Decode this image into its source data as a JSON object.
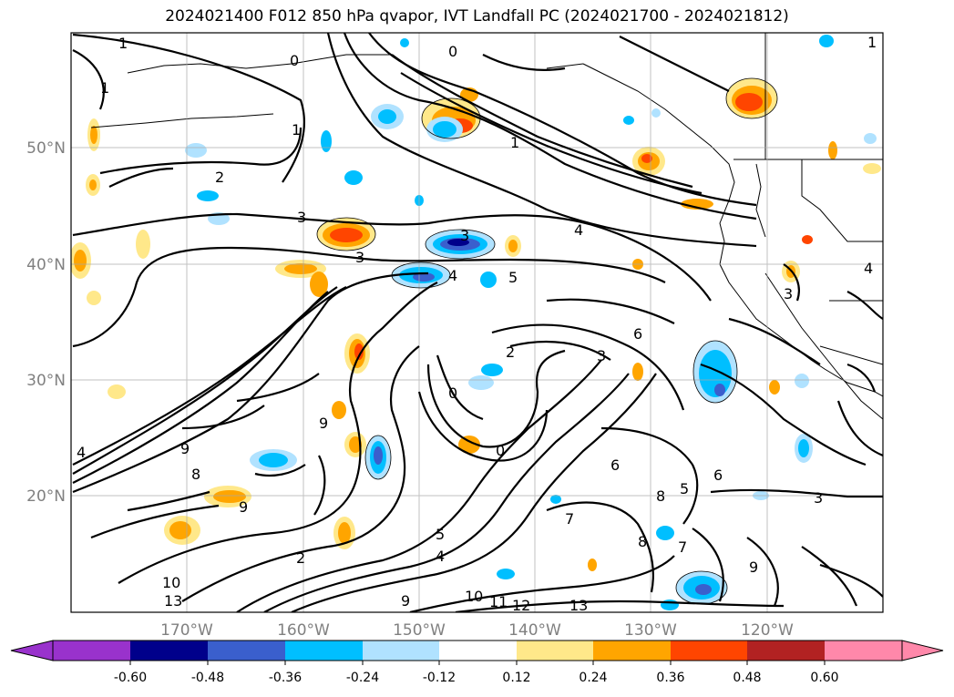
{
  "title": "2024021400 F012 850 hPa qvapor, IVT Landfall PC (2024021700 - 2024021812)",
  "map": {
    "lat_labels": [
      "50°N",
      "40°N",
      "30°N",
      "20°N"
    ],
    "lon_labels": [
      "170°W",
      "160°W",
      "150°W",
      "140°W",
      "130°W",
      "120°W"
    ],
    "grid": true,
    "contour_labels": [
      {
        "text": "1"
      },
      {
        "text": "1"
      },
      {
        "text": "0"
      },
      {
        "text": "0"
      },
      {
        "text": "1"
      },
      {
        "text": "1"
      },
      {
        "text": "2"
      },
      {
        "text": "3"
      },
      {
        "text": "3"
      },
      {
        "text": "3"
      },
      {
        "text": "4"
      },
      {
        "text": "4"
      },
      {
        "text": "5"
      },
      {
        "text": "2"
      },
      {
        "text": "3"
      },
      {
        "text": "0"
      },
      {
        "text": "0"
      },
      {
        "text": "9"
      },
      {
        "text": "9"
      },
      {
        "text": "8"
      },
      {
        "text": "4"
      },
      {
        "text": "9"
      },
      {
        "text": "6"
      },
      {
        "text": "5"
      },
      {
        "text": "4"
      },
      {
        "text": "2"
      },
      {
        "text": "5"
      },
      {
        "text": "6"
      },
      {
        "text": "8"
      },
      {
        "text": "7"
      },
      {
        "text": "8"
      },
      {
        "text": "7"
      },
      {
        "text": "9"
      },
      {
        "text": "9"
      },
      {
        "text": "10"
      },
      {
        "text": "11"
      },
      {
        "text": "12"
      },
      {
        "text": "13"
      },
      {
        "text": "13"
      },
      {
        "text": "10"
      },
      {
        "text": "3"
      },
      {
        "text": "4"
      },
      {
        "text": "3"
      },
      {
        "text": "6"
      },
      {
        "text": "1"
      }
    ]
  },
  "colorbar": {
    "ticks": [
      "-0.60",
      "-0.48",
      "-0.36",
      "-0.24",
      "-0.12",
      "0.12",
      "0.24",
      "0.36",
      "0.48",
      "0.60"
    ],
    "colors": [
      "#9932cc",
      "#00008b",
      "#3a5fcd",
      "#00bfff",
      "#b0e2ff",
      "#ffffff",
      "#ffe88a",
      "#ffa500",
      "#ff4500",
      "#b22222",
      "#ff88aa"
    ],
    "extend": "both"
  }
}
